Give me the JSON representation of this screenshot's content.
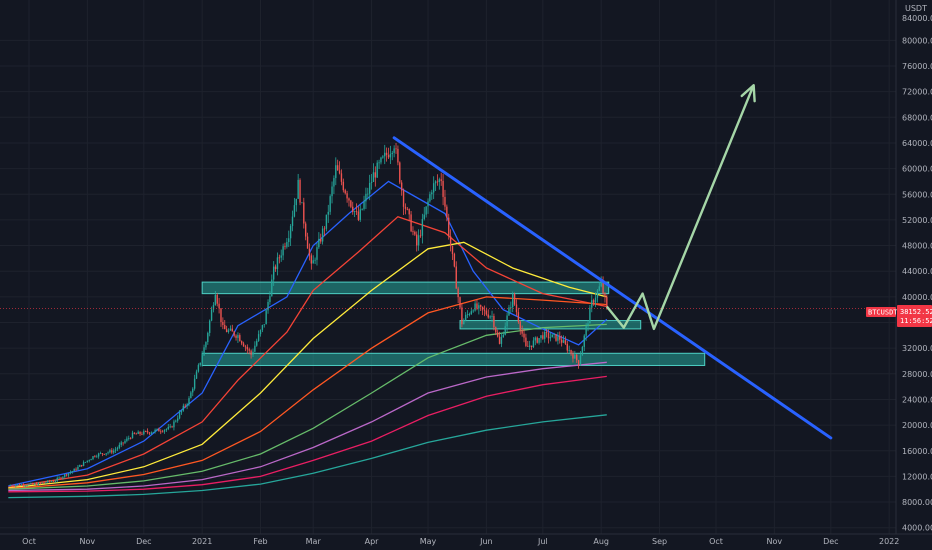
{
  "chart_data": {
    "type": "candlestick",
    "quote_currency": "USDT",
    "symbol_label": "BTCUSDT",
    "last_price_label": "38152.52",
    "countdown_label": "11:56:52",
    "ylim": [
      4000,
      90000
    ],
    "y_ticks": [
      4000,
      8000,
      12000,
      16000,
      20000,
      24000,
      28000,
      32000,
      36000,
      40000,
      44000,
      48000,
      52000,
      56000,
      60000,
      64000,
      68000,
      72000,
      76000,
      80000
    ],
    "y_tick_labels": [
      "4000.00",
      "8000.00",
      "12000.00",
      "16000.00",
      "20000.00",
      "24000.00",
      "28000.00",
      "32000.00",
      "36000.00",
      "40000.00",
      "44000.00",
      "48000.00",
      "52000.00",
      "56000.00",
      "60000.00",
      "64000.00",
      "68000.00",
      "72000.00",
      "76000.00",
      "80000.00"
    ],
    "top_partial_label": "84000.00",
    "x_ticks": [
      {
        "label": "Oct",
        "date": "2020-10-01"
      },
      {
        "label": "Nov",
        "date": "2020-11-01"
      },
      {
        "label": "Dec",
        "date": "2020-12-01"
      },
      {
        "label": "2021",
        "date": "2021-01-01"
      },
      {
        "label": "Feb",
        "date": "2021-02-01"
      },
      {
        "label": "Mar",
        "date": "2021-03-01"
      },
      {
        "label": "Apr",
        "date": "2021-04-01"
      },
      {
        "label": "May",
        "date": "2021-05-01"
      },
      {
        "label": "Jun",
        "date": "2021-06-01"
      },
      {
        "label": "Jul",
        "date": "2021-07-01"
      },
      {
        "label": "Aug",
        "date": "2021-08-01"
      },
      {
        "label": "Sep",
        "date": "2021-09-01"
      },
      {
        "label": "Oct",
        "date": "2021-10-01"
      },
      {
        "label": "Nov",
        "date": "2021-11-01"
      },
      {
        "label": "Dec",
        "date": "2021-12-01"
      },
      {
        "label": "2022",
        "date": "2022-01-01"
      }
    ],
    "price_path": [
      [
        "2020-09-20",
        10600
      ],
      [
        "2020-10-05",
        10800
      ],
      [
        "2020-10-15",
        11400
      ],
      [
        "2020-10-25",
        13000
      ],
      [
        "2020-11-05",
        15300
      ],
      [
        "2020-11-15",
        16000
      ],
      [
        "2020-11-25",
        18500
      ],
      [
        "2020-12-05",
        19000
      ],
      [
        "2020-12-15",
        19500
      ],
      [
        "2020-12-25",
        24000
      ],
      [
        "2021-01-03",
        33000
      ],
      [
        "2021-01-08",
        41000
      ],
      [
        "2021-01-12",
        35000
      ],
      [
        "2021-01-20",
        34000
      ],
      [
        "2021-01-27",
        31000
      ],
      [
        "2021-02-03",
        36000
      ],
      [
        "2021-02-08",
        44000
      ],
      [
        "2021-02-16",
        50000
      ],
      [
        "2021-02-21",
        57500
      ],
      [
        "2021-02-28",
        44500
      ],
      [
        "2021-03-08",
        52000
      ],
      [
        "2021-03-13",
        60000
      ],
      [
        "2021-03-25",
        52000
      ],
      [
        "2021-04-02",
        59000
      ],
      [
        "2021-04-13",
        64000
      ],
      [
        "2021-04-18",
        55000
      ],
      [
        "2021-04-25",
        48000
      ],
      [
        "2021-05-03",
        57000
      ],
      [
        "2021-05-08",
        58500
      ],
      [
        "2021-05-12",
        50000
      ],
      [
        "2021-05-19",
        36000
      ],
      [
        "2021-05-25",
        38500
      ],
      [
        "2021-06-04",
        37000
      ],
      [
        "2021-06-08",
        32500
      ],
      [
        "2021-06-15",
        40000
      ],
      [
        "2021-06-22",
        32000
      ],
      [
        "2021-07-01",
        34000
      ],
      [
        "2021-07-10",
        33500
      ],
      [
        "2021-07-20",
        29800
      ],
      [
        "2021-07-27",
        39000
      ],
      [
        "2021-08-01",
        42000
      ],
      [
        "2021-08-04",
        38152
      ]
    ],
    "moving_averages": [
      {
        "color": "#2962ff",
        "points": [
          [
            "2020-09-20",
            10500
          ],
          [
            "2020-11-01",
            13200
          ],
          [
            "2020-12-01",
            17500
          ],
          [
            "2021-01-01",
            25000
          ],
          [
            "2021-01-20",
            35500
          ],
          [
            "2021-02-15",
            40000
          ],
          [
            "2021-03-01",
            48000
          ],
          [
            "2021-03-20",
            53000
          ],
          [
            "2021-04-10",
            58000
          ],
          [
            "2021-04-25",
            55500
          ],
          [
            "2021-05-10",
            53000
          ],
          [
            "2021-05-25",
            44000
          ],
          [
            "2021-06-10",
            38000
          ],
          [
            "2021-07-01",
            35000
          ],
          [
            "2021-07-20",
            32500
          ],
          [
            "2021-08-04",
            36500
          ]
        ]
      },
      {
        "color": "#f44336",
        "points": [
          [
            "2020-09-20",
            10300
          ],
          [
            "2020-11-01",
            12200
          ],
          [
            "2020-12-01",
            15500
          ],
          [
            "2021-01-01",
            20500
          ],
          [
            "2021-01-20",
            27000
          ],
          [
            "2021-02-15",
            34500
          ],
          [
            "2021-03-01",
            41000
          ],
          [
            "2021-03-25",
            47000
          ],
          [
            "2021-04-15",
            52500
          ],
          [
            "2021-05-10",
            50000
          ],
          [
            "2021-06-01",
            44500
          ],
          [
            "2021-07-01",
            40500
          ],
          [
            "2021-08-04",
            38500
          ]
        ]
      },
      {
        "color": "#ffeb3b",
        "points": [
          [
            "2020-09-20",
            10200
          ],
          [
            "2020-11-01",
            11500
          ],
          [
            "2020-12-01",
            13500
          ],
          [
            "2021-01-01",
            17000
          ],
          [
            "2021-02-01",
            25000
          ],
          [
            "2021-03-01",
            33500
          ],
          [
            "2021-04-01",
            41000
          ],
          [
            "2021-05-01",
            47500
          ],
          [
            "2021-05-20",
            48500
          ],
          [
            "2021-06-15",
            44500
          ],
          [
            "2021-07-15",
            41500
          ],
          [
            "2021-08-04",
            40000
          ]
        ]
      },
      {
        "color": "#ff5722",
        "points": [
          [
            "2020-09-20",
            10100
          ],
          [
            "2020-11-01",
            11000
          ],
          [
            "2020-12-01",
            12300
          ],
          [
            "2021-01-01",
            14500
          ],
          [
            "2021-02-01",
            19000
          ],
          [
            "2021-03-01",
            25500
          ],
          [
            "2021-04-01",
            32000
          ],
          [
            "2021-05-01",
            37500
          ],
          [
            "2021-06-01",
            40000
          ],
          [
            "2021-07-01",
            39500
          ],
          [
            "2021-08-04",
            38800
          ]
        ]
      },
      {
        "color": "#66bb6a",
        "points": [
          [
            "2020-09-20",
            10000
          ],
          [
            "2020-11-01",
            10500
          ],
          [
            "2020-12-01",
            11300
          ],
          [
            "2021-01-01",
            12800
          ],
          [
            "2021-02-01",
            15500
          ],
          [
            "2021-03-01",
            19500
          ],
          [
            "2021-04-01",
            25000
          ],
          [
            "2021-05-01",
            30500
          ],
          [
            "2021-06-01",
            34000
          ],
          [
            "2021-07-01",
            35200
          ],
          [
            "2021-08-04",
            35700
          ]
        ]
      },
      {
        "color": "#ba68c8",
        "points": [
          [
            "2020-09-20",
            9800
          ],
          [
            "2020-11-01",
            10000
          ],
          [
            "2020-12-01",
            10500
          ],
          [
            "2021-01-01",
            11500
          ],
          [
            "2021-02-01",
            13500
          ],
          [
            "2021-03-01",
            16500
          ],
          [
            "2021-04-01",
            20500
          ],
          [
            "2021-05-01",
            25000
          ],
          [
            "2021-06-01",
            27500
          ],
          [
            "2021-07-01",
            28800
          ],
          [
            "2021-08-04",
            29800
          ]
        ]
      },
      {
        "color": "#e91e63",
        "points": [
          [
            "2020-09-20",
            9600
          ],
          [
            "2020-11-01",
            9700
          ],
          [
            "2020-12-01",
            10000
          ],
          [
            "2021-01-01",
            10700
          ],
          [
            "2021-02-01",
            12000
          ],
          [
            "2021-03-01",
            14500
          ],
          [
            "2021-04-01",
            17500
          ],
          [
            "2021-05-01",
            21500
          ],
          [
            "2021-06-01",
            24500
          ],
          [
            "2021-07-01",
            26300
          ],
          [
            "2021-08-04",
            27600
          ]
        ]
      },
      {
        "color": "#26a69a",
        "points": [
          [
            "2020-09-20",
            8700
          ],
          [
            "2020-11-01",
            8900
          ],
          [
            "2020-12-01",
            9200
          ],
          [
            "2021-01-01",
            9800
          ],
          [
            "2021-02-01",
            10800
          ],
          [
            "2021-03-01",
            12500
          ],
          [
            "2021-04-01",
            14800
          ],
          [
            "2021-05-01",
            17300
          ],
          [
            "2021-06-01",
            19200
          ],
          [
            "2021-07-01",
            20500
          ],
          [
            "2021-08-04",
            21600
          ]
        ]
      }
    ],
    "drawings": {
      "trendline": {
        "color": "#2962ff",
        "from": [
          "2021-04-13",
          64800
        ],
        "to": [
          "2021-12-01",
          18000
        ]
      },
      "support_zones": [
        {
          "from": "2021-01-01",
          "to": "2021-08-05",
          "y_low": 40500,
          "y_high": 42300
        },
        {
          "from": "2021-05-18",
          "to": "2021-08-22",
          "y_low": 35000,
          "y_high": 36300
        },
        {
          "from": "2021-01-01",
          "to": "2021-09-25",
          "y_low": 29300,
          "y_high": 31200
        }
      ],
      "projection": {
        "color": "#a5d6a7",
        "points": [
          [
            "2021-08-04",
            38500
          ],
          [
            "2021-08-13",
            35200
          ],
          [
            "2021-08-23",
            40500
          ],
          [
            "2021-08-29",
            35000
          ],
          [
            "2021-10-21",
            73000
          ]
        ]
      },
      "current_price_line": 38152
    }
  }
}
